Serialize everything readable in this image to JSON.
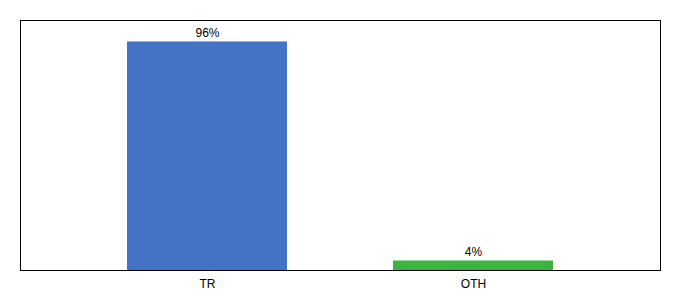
{
  "chart_data": {
    "type": "bar",
    "categories": [
      "TR",
      "OTH"
    ],
    "values": [
      96,
      4
    ],
    "value_labels": [
      "96%",
      "4%"
    ],
    "colors": [
      "#4472C4",
      "#3CB540"
    ],
    "ylim": [
      0,
      105
    ],
    "data_labels": true,
    "tick_labels": "x",
    "grid": false
  }
}
